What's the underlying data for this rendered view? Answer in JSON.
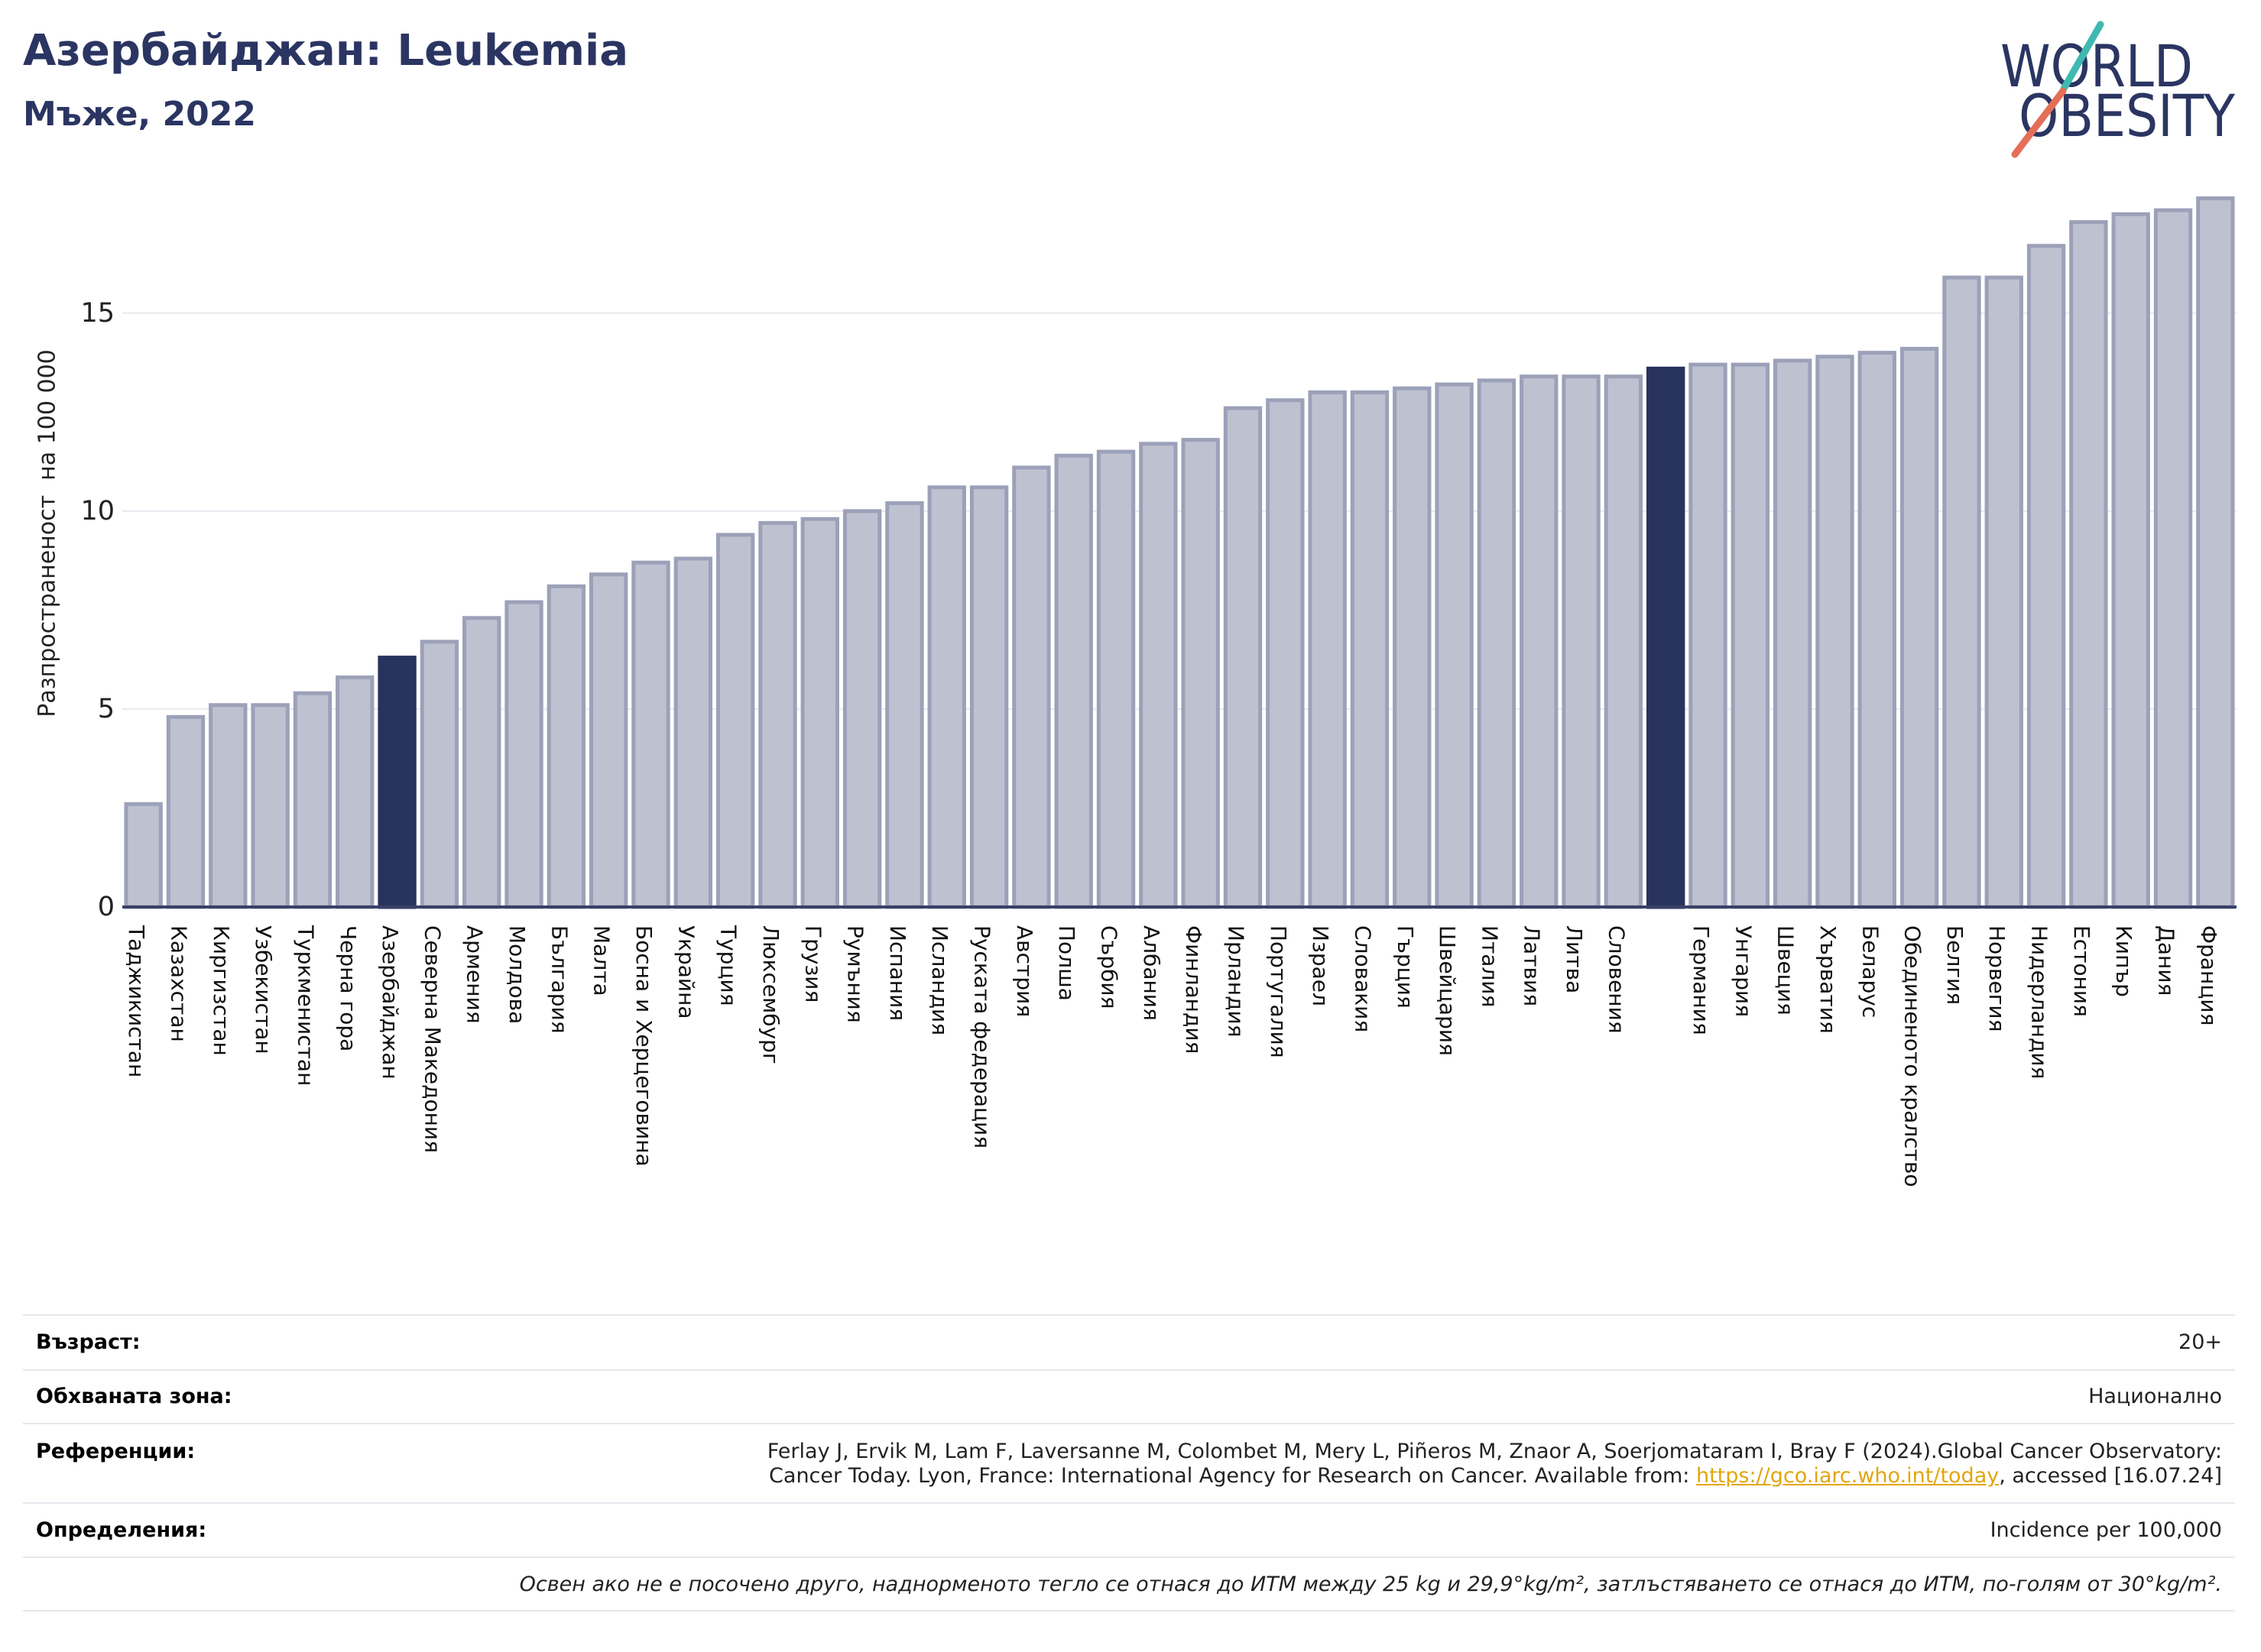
{
  "chart_data": {
    "type": "bar",
    "title": "Азербайджан: Leukemia",
    "subtitle": "Мъже, 2022",
    "xlabel": "",
    "ylabel": "Разпространеност  на 100 000",
    "ylim": [
      0,
      18.2
    ],
    "yticks": [
      0,
      5,
      10,
      15
    ],
    "grid": true,
    "categories": [
      "Таджикистан",
      "Казахстан",
      "Киргизстан",
      "Узбекистан",
      "Туркменистан",
      "Черна гора",
      "Азербайджан",
      "Северна Македония",
      "Армения",
      "Молдова",
      "България",
      "Малта",
      "Босна и Херцеговина",
      "Украйна",
      "Турция",
      "Люксембург",
      "Грузия",
      "Румъния",
      "Испания",
      "Исландия",
      "Руската федерация",
      "Австрия",
      "Полша",
      "Сърбия",
      "Албания",
      "Финландия",
      "Ирландия",
      "Португалия",
      "Израел",
      "Словакия",
      "Гърция",
      "Швейцария",
      "Италия",
      "Латвия",
      "Литва",
      "Словения",
      "",
      "Германия",
      "Унгария",
      "Швеция",
      "Хърватия",
      "Беларус",
      "Обединеното кралство",
      "Белгия",
      "Норвегия",
      "Нидерландия",
      "Естония",
      "Кипър",
      "Дания",
      "Франция"
    ],
    "values": [
      2.6,
      4.8,
      5.1,
      5.1,
      5.4,
      5.8,
      6.3,
      6.7,
      7.3,
      7.7,
      8.1,
      8.4,
      8.7,
      8.8,
      9.4,
      9.7,
      9.8,
      10.0,
      10.2,
      10.6,
      10.6,
      11.1,
      11.4,
      11.5,
      11.7,
      11.8,
      12.6,
      12.8,
      13.0,
      13.0,
      13.1,
      13.2,
      13.3,
      13.4,
      13.4,
      13.4,
      13.6,
      13.7,
      13.7,
      13.8,
      13.9,
      14.0,
      14.1,
      15.9,
      15.9,
      16.7,
      17.3,
      17.5,
      17.6,
      17.9
    ],
    "highlight_indices": [
      6,
      36
    ],
    "bar_color": "#bec1d0",
    "bar_edge_color": "#9ca1b9",
    "highlight_color": "#28335e",
    "grid_color": "#e8e9f0",
    "axis_color": "#3a4166"
  },
  "logo": {
    "line1": "WORLD",
    "line2": "OBESITY",
    "color": "#2b3562",
    "accent_top": "#3fb9b1",
    "accent_bottom": "#e46e58"
  },
  "info": {
    "age": {
      "label": "Възраст:",
      "value": "20+"
    },
    "coverage": {
      "label": "Обхваната зона:",
      "value": "Национално"
    },
    "references": {
      "label": "Референции:",
      "line1": "Ferlay J, Ervik M, Lam F, Laversanne M, Colombet M, Mery L, Piñeros M, Znaor A, Soerjomataram I, Bray F (2024).Global Cancer Observatory:",
      "line2_before": "Cancer Today. Lyon, France: International Agency for Research on Cancer. Available from: ",
      "link": "https://gco.iarc.who.int/today",
      "line2_after": ", accessed [16.07.24]"
    },
    "definitions": {
      "label": "Определения:",
      "value": "Incidence per 100,000"
    },
    "note": "Освен ако не е посочено друго, наднорменото тегло се отнася до ИТМ между 25 kg и 29,9°kg/m², затлъстяването се отнася до ИТМ, по-голям от 30°kg/m²."
  }
}
